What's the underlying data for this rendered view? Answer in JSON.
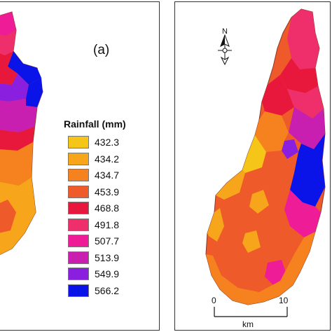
{
  "panel_a": {
    "label": "(a)"
  },
  "legend": {
    "title": "Rainfall (mm)",
    "items": [
      {
        "value": "432.3",
        "color": "#f5c518"
      },
      {
        "value": "434.2",
        "color": "#f7a51b"
      },
      {
        "value": "434.7",
        "color": "#f5821f"
      },
      {
        "value": "453.9",
        "color": "#ee5a2a"
      },
      {
        "value": "468.8",
        "color": "#e8183c"
      },
      {
        "value": "491.8",
        "color": "#ee2f6b"
      },
      {
        "value": "507.7",
        "color": "#ee1c96"
      },
      {
        "value": "513.9",
        "color": "#c81fb0"
      },
      {
        "value": "549.9",
        "color": "#8a1fe0"
      },
      {
        "value": "566.2",
        "color": "#0a14e8"
      }
    ]
  },
  "north_arrow": {
    "letter": "N"
  },
  "scale_bar": {
    "start": "0",
    "end": "10",
    "unit": "km"
  }
}
